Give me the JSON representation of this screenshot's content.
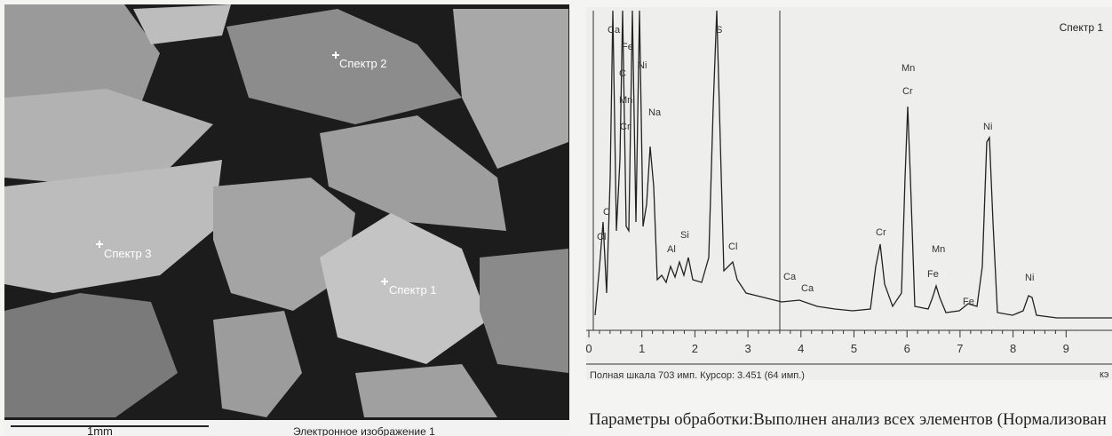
{
  "sem_image": {
    "labels": [
      "Спектр 2",
      "Спектр 3",
      "Спектр 1"
    ],
    "scale_bar": "1mm",
    "caption": "Электронное изображение 1"
  },
  "spectrum": {
    "title": "Спектр 1",
    "peak_labels": [
      "Ca",
      "Fe",
      "Ni",
      "C",
      "Mn",
      "Cr",
      "Na",
      "S",
      "C",
      "Cl",
      "Al",
      "Si",
      "Cl",
      "Ca",
      "Ca",
      "Cr",
      "Mn",
      "Cr",
      "Mn",
      "Fe",
      "Fe",
      "Ni",
      "Ni"
    ],
    "x_tick_labels": [
      "0",
      "1",
      "2",
      "3",
      "4",
      "5",
      "6",
      "7",
      "8",
      "9"
    ],
    "x_unit": "кэ",
    "status": "Полная шкала 703 имп. Курсор: 3.451 (64 имп.)"
  },
  "footer_text": "Параметры обработки:Выполнен анализ всех элементов (Нормализован"
}
